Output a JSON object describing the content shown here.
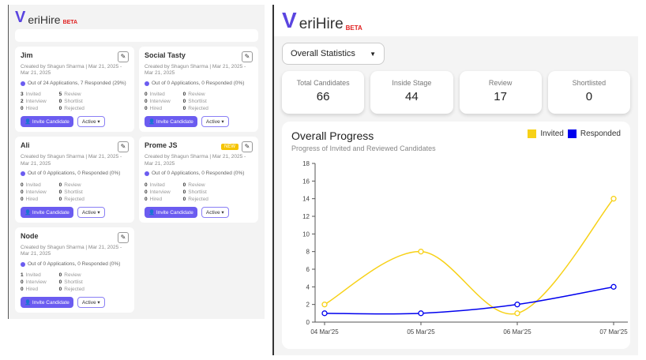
{
  "brand": {
    "name_first": "V",
    "name_rest": "eriHire",
    "badge": "BETA"
  },
  "jobs_view": {
    "cards": [
      {
        "title": "Jim",
        "meta": "Created by Shagun Sharma | Mar 21, 2025 - Mar 21, 2025",
        "apps": "Out of 24 Applications, 7 Responded (29%)",
        "left": [
          [
            "3",
            "Invited"
          ],
          [
            "2",
            "Interview"
          ],
          [
            "0",
            "Hired"
          ]
        ],
        "right": [
          [
            "5",
            "Review"
          ],
          [
            "0",
            "Shortlist"
          ],
          [
            "0",
            "Rejected"
          ]
        ],
        "badge": ""
      },
      {
        "title": "Social Tasty",
        "meta": "Created by Shagun Sharma | Mar 21, 2025 - Mar 21, 2025",
        "apps": "Out of 0 Applications, 0 Responded (0%)",
        "left": [
          [
            "0",
            "Invited"
          ],
          [
            "0",
            "Interview"
          ],
          [
            "0",
            "Hired"
          ]
        ],
        "right": [
          [
            "0",
            "Review"
          ],
          [
            "0",
            "Shortlist"
          ],
          [
            "0",
            "Rejected"
          ]
        ],
        "badge": ""
      },
      {
        "title": "Ali",
        "meta": "Created by Shagun Sharma | Mar 21, 2025 - Mar 21, 2025",
        "apps": "Out of 0 Applications, 0 Responded (0%)",
        "left": [
          [
            "0",
            "Invited"
          ],
          [
            "0",
            "Interview"
          ],
          [
            "0",
            "Hired"
          ]
        ],
        "right": [
          [
            "0",
            "Review"
          ],
          [
            "0",
            "Shortlist"
          ],
          [
            "0",
            "Rejected"
          ]
        ],
        "badge": ""
      },
      {
        "title": "Prome JS",
        "meta": "Created by Shagun Sharma | Mar 21, 2025 - Mar 21, 2025",
        "apps": "Out of 0 Applications, 0 Responded (0%)",
        "left": [
          [
            "0",
            "Invited"
          ],
          [
            "0",
            "Interview"
          ],
          [
            "0",
            "Hired"
          ]
        ],
        "right": [
          [
            "0",
            "Review"
          ],
          [
            "0",
            "Shortlist"
          ],
          [
            "0",
            "Rejected"
          ]
        ],
        "badge": "NEW"
      },
      {
        "title": "Node",
        "meta": "Created by Shagun Sharma | Mar 21, 2025 - Mar 21, 2025",
        "apps": "Out of 0 Applications, 0 Responded (0%)",
        "left": [
          [
            "1",
            "Invited"
          ],
          [
            "0",
            "Interview"
          ],
          [
            "0",
            "Hired"
          ]
        ],
        "right": [
          [
            "0",
            "Review"
          ],
          [
            "0",
            "Shortlist"
          ],
          [
            "0",
            "Rejected"
          ]
        ],
        "badge": ""
      }
    ],
    "invite_label": "Invite Candidate",
    "status_label": "Active"
  },
  "dashboard": {
    "view_select": "Overall Statistics",
    "stats": [
      {
        "label": "Total Candidates",
        "value": "66"
      },
      {
        "label": "Inside Stage",
        "value": "44"
      },
      {
        "label": "Review",
        "value": "17"
      },
      {
        "label": "Shortlisted",
        "value": "0"
      }
    ],
    "chart_title": "Overall Progress",
    "chart_subtitle": "Progress of Invited and Reviewed Candidates"
  },
  "colors": {
    "invited": "#f7d117",
    "responded": "#0000ee",
    "accent": "#5a45e0"
  },
  "chart_data": {
    "type": "line",
    "title": "Overall Progress",
    "subtitle": "Progress of Invited and Reviewed Candidates",
    "categories": [
      "04 Mar'25",
      "05 Mar'25",
      "06 Mar'25",
      "07 Mar'25"
    ],
    "series": [
      {
        "name": "Invited",
        "values": [
          2,
          8,
          1,
          14
        ]
      },
      {
        "name": "Responded",
        "values": [
          1,
          1,
          2,
          4
        ]
      }
    ],
    "yticks": [
      "0",
      "2",
      "4",
      "6",
      "8",
      "10",
      "12",
      "14",
      "16",
      "18"
    ],
    "ylim": [
      0,
      18
    ],
    "legend": "top-right",
    "grid": false,
    "curve": "smooth"
  }
}
